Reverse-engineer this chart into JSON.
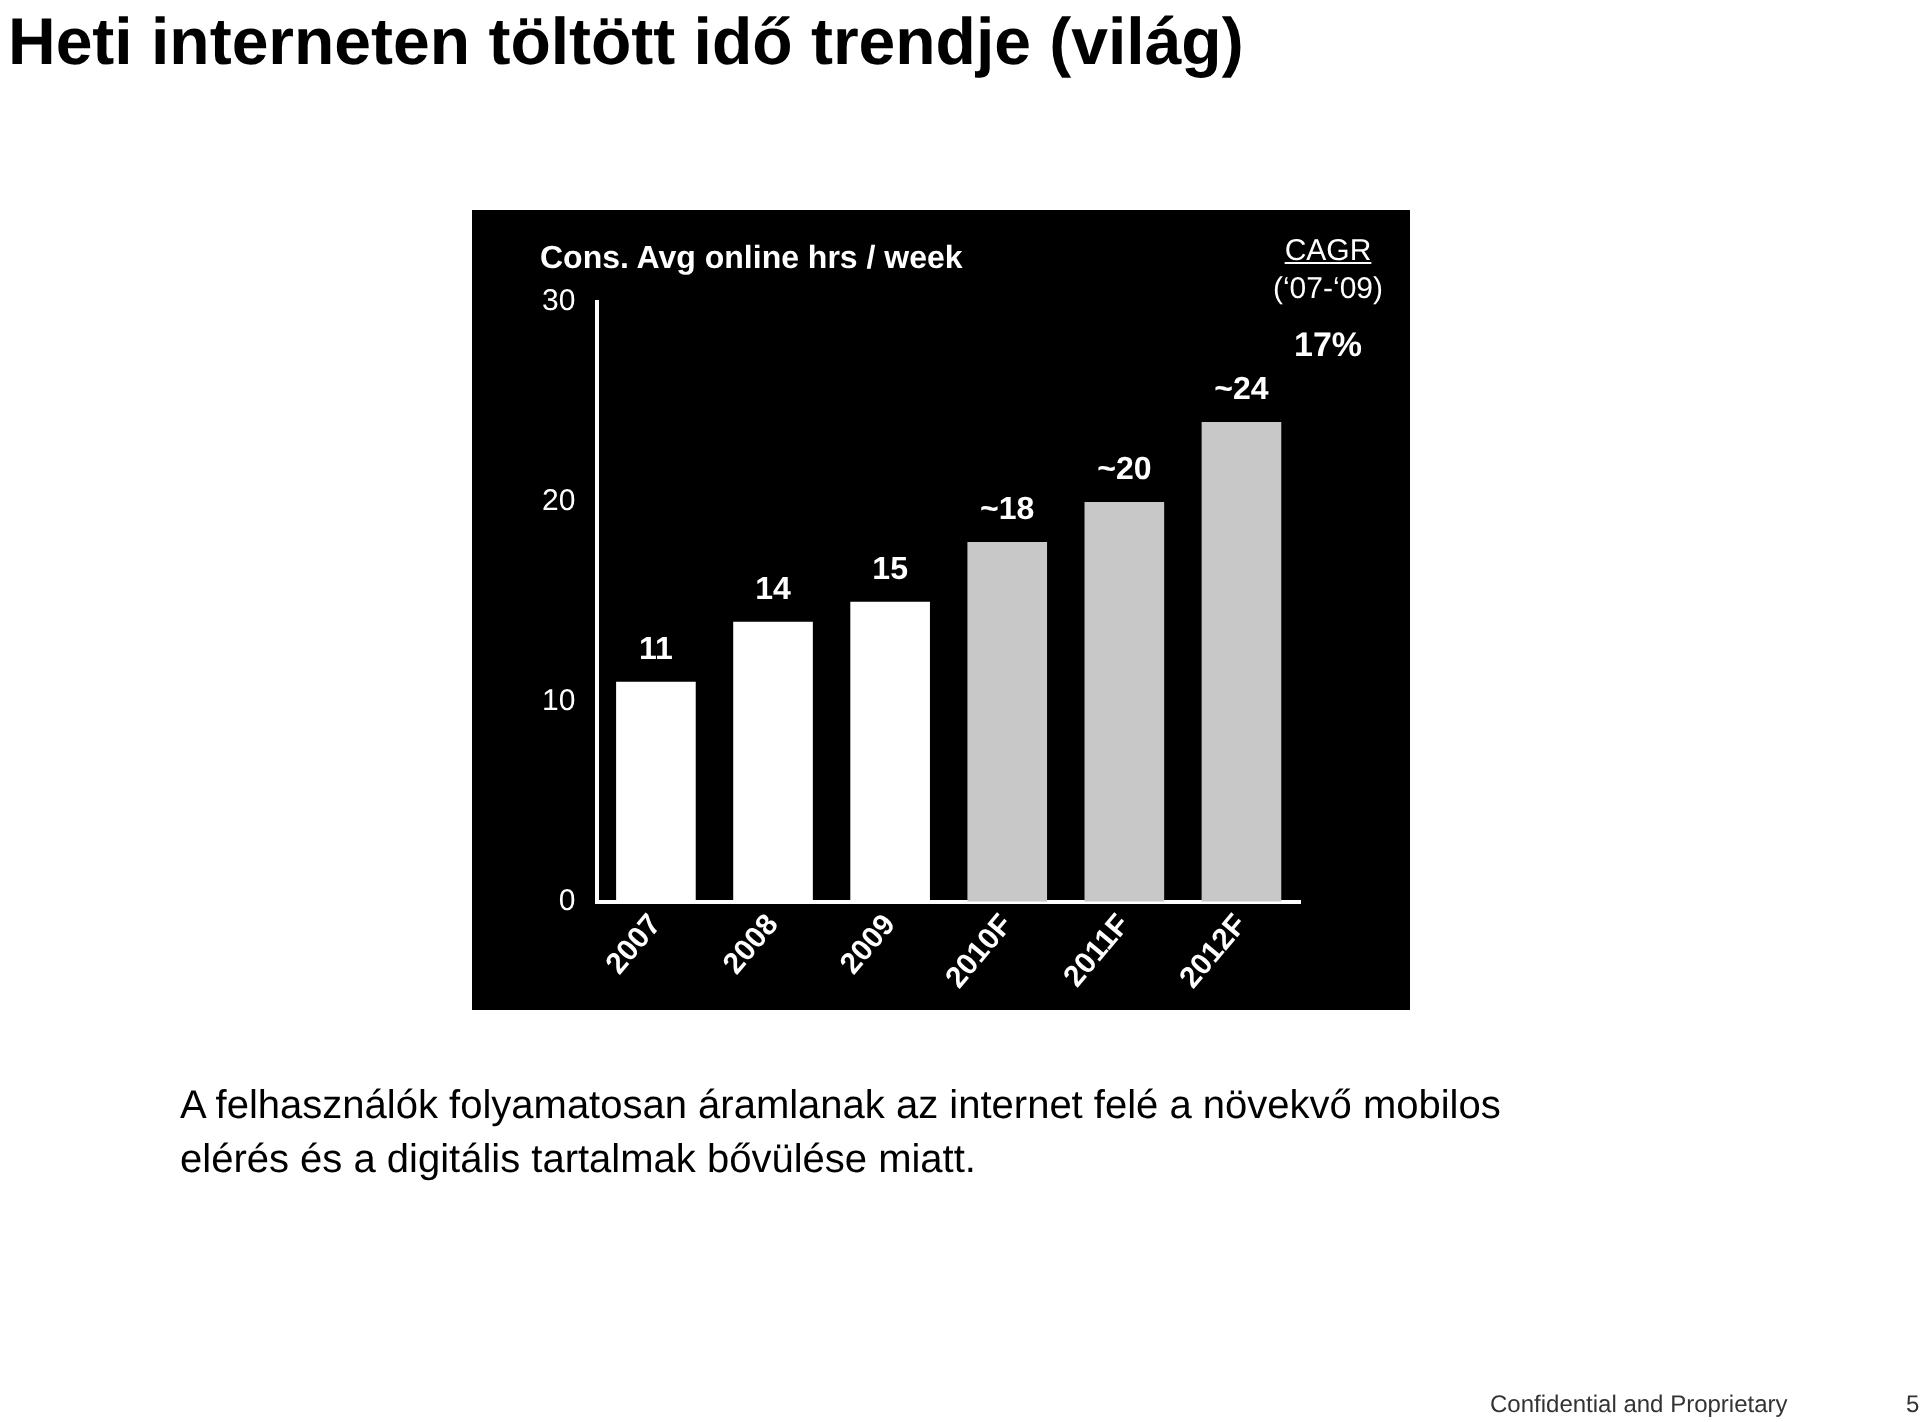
{
  "chart_data": {
    "type": "bar",
    "title": "Heti interneten töltött idő trendje (világ)",
    "ylabel": "Cons. Avg online hrs / week",
    "categories": [
      "2007",
      "2008",
      "2009",
      "2010F",
      "2011F",
      "2012F"
    ],
    "values": [
      11,
      14,
      15,
      18,
      20,
      24
    ],
    "value_labels": [
      "11",
      "14",
      "15",
      "~18",
      "~20",
      "~24"
    ],
    "colors": [
      "#ffffff",
      "#ffffff",
      "#ffffff",
      "#c8c8c8",
      "#c8c8c8",
      "#c8c8c8"
    ],
    "ylim": [
      0,
      30
    ],
    "yticks": [
      0,
      10,
      20,
      30
    ],
    "grid": false,
    "legend": false,
    "annotations": [
      "CAGR",
      "(‘07-‘09)",
      "17%",
      "A felhasználók folyamatosan áramlanak az internet felé a növekvő mobilos elérés és a digitális tartalmak bővülése miatt.",
      "Confidential and Proprietary",
      "5"
    ]
  }
}
